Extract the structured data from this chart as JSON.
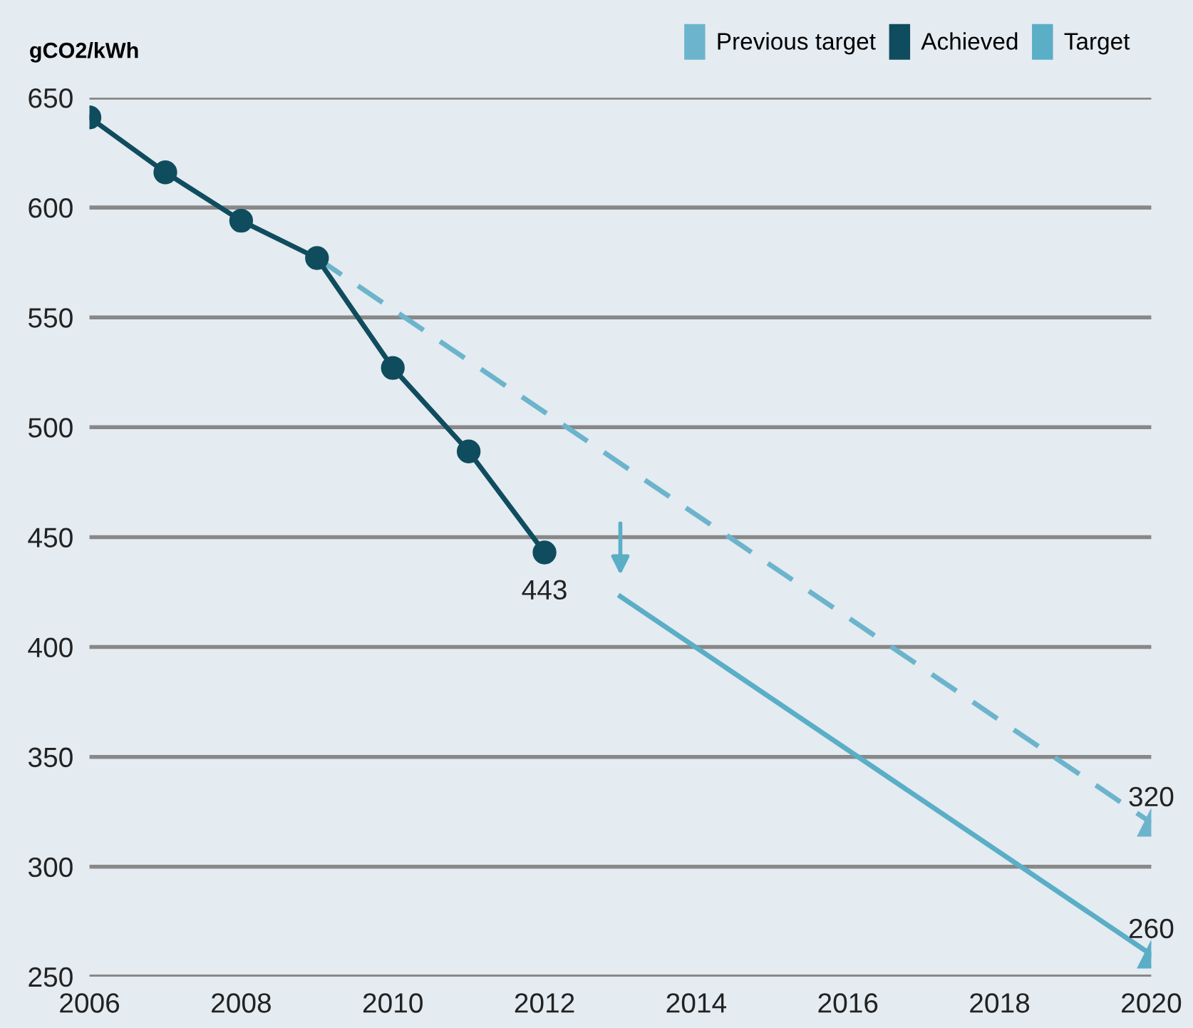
{
  "chart_data": {
    "type": "line",
    "ylabel": "gCO2/kWh",
    "x": [
      2006,
      2007,
      2008,
      2009,
      2010,
      2011,
      2012
    ],
    "series": [
      {
        "name": "Previous target",
        "color": "#6cb4cc",
        "x": [
          2009,
          2020
        ],
        "values": [
          577,
          320
        ],
        "line_style": "dashed",
        "marker": "triangle",
        "value_labels": [
          null,
          "320"
        ]
      },
      {
        "name": "Achieved",
        "color": "#0f4c5e",
        "values": [
          641,
          616,
          594,
          577,
          527,
          489,
          443
        ],
        "line_style": "solid",
        "marker": "circle",
        "value_labels": [
          null,
          null,
          null,
          null,
          null,
          null,
          "443"
        ]
      },
      {
        "name": "Target",
        "color": "#5aaec6",
        "x": [
          2013,
          2020
        ],
        "values": [
          423,
          260
        ],
        "line_style": "solid",
        "marker": "triangle",
        "value_labels": [
          null,
          "260"
        ]
      }
    ],
    "xlim": [
      2006,
      2020
    ],
    "xticks": [
      2006,
      2008,
      2010,
      2012,
      2014,
      2016,
      2018,
      2020
    ],
    "ylim": [
      250,
      650
    ],
    "yticks": [
      250,
      300,
      350,
      400,
      450,
      500,
      550,
      600,
      650
    ],
    "grid": "y",
    "legend": "top right"
  }
}
